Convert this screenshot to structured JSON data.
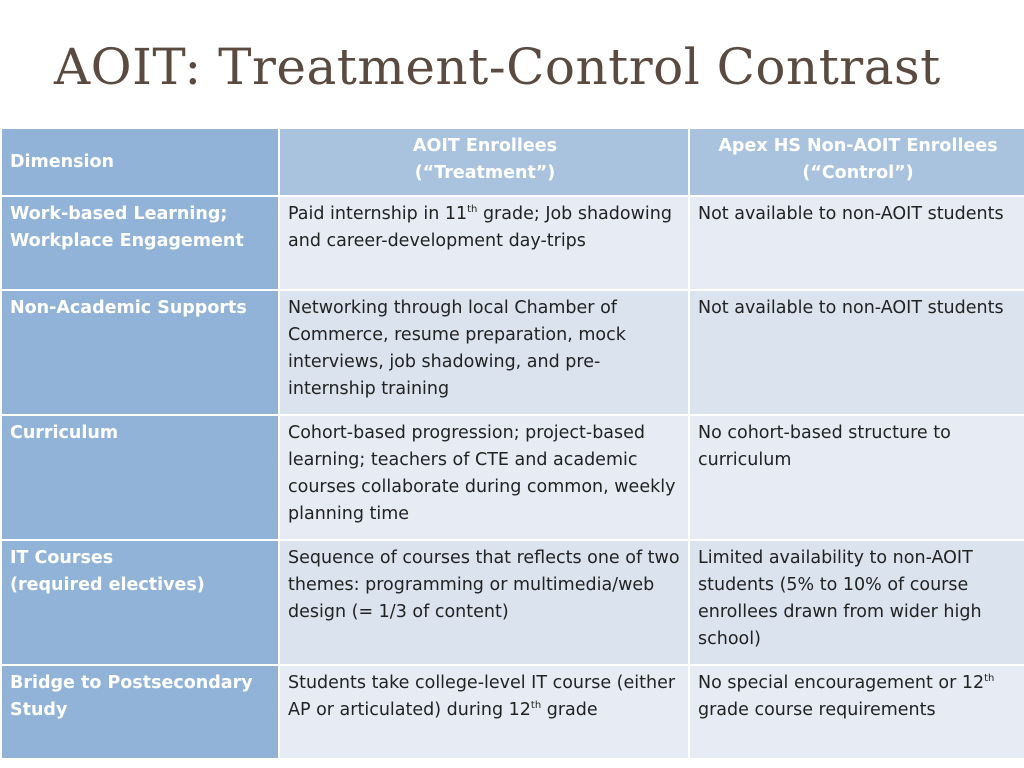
{
  "slide": {
    "title": "AOIT: Treatment-Control Contrast"
  },
  "table": {
    "header": {
      "dimension": "Dimension",
      "treatment_line1": "AOIT Enrollees",
      "treatment_line2": "(“Treatment”)",
      "control_line1": "Apex HS Non-AOIT Enrollees",
      "control_line2": "(“Control”)"
    },
    "rows": [
      {
        "dim_line1": "Work-based Learning;",
        "dim_line2": "Workplace Engagement",
        "treat_a": "Paid internship in 11",
        "treat_sup": "th",
        "treat_b": " grade; Job shadowing and career-development day-trips",
        "control": "Not available to non-AOIT students"
      },
      {
        "dim_line1": "Non-Academic Supports",
        "treat": "Networking through local Chamber of Commerce, resume preparation, mock interviews, job shadowing, and pre-internship training",
        "control": "Not available to non-AOIT students"
      },
      {
        "dim_line1": "Curriculum",
        "treat": "Cohort-based progression; project-based learning; teachers of CTE and academic courses collaborate during common, weekly planning time",
        "control": "No cohort-based structure to curriculum"
      },
      {
        "dim_line1": "IT Courses",
        "dim_line2": "(required electives)",
        "treat": "Sequence of courses that reflects one of two themes: programming or multimedia/web design (= 1/3 of content)",
        "control": "Limited availability to non-AOIT students (5% to 10% of course enrollees drawn from wider high school)"
      },
      {
        "dim_line1": "Bridge to Postsecondary Study",
        "treat_a": "Students take college-level IT course (either AP or articulated) during 12",
        "treat_sup": "th",
        "treat_b": " grade",
        "control_a": "No special encouragement or 12",
        "control_sup": "th",
        "control_b": " grade course requirements"
      }
    ]
  }
}
